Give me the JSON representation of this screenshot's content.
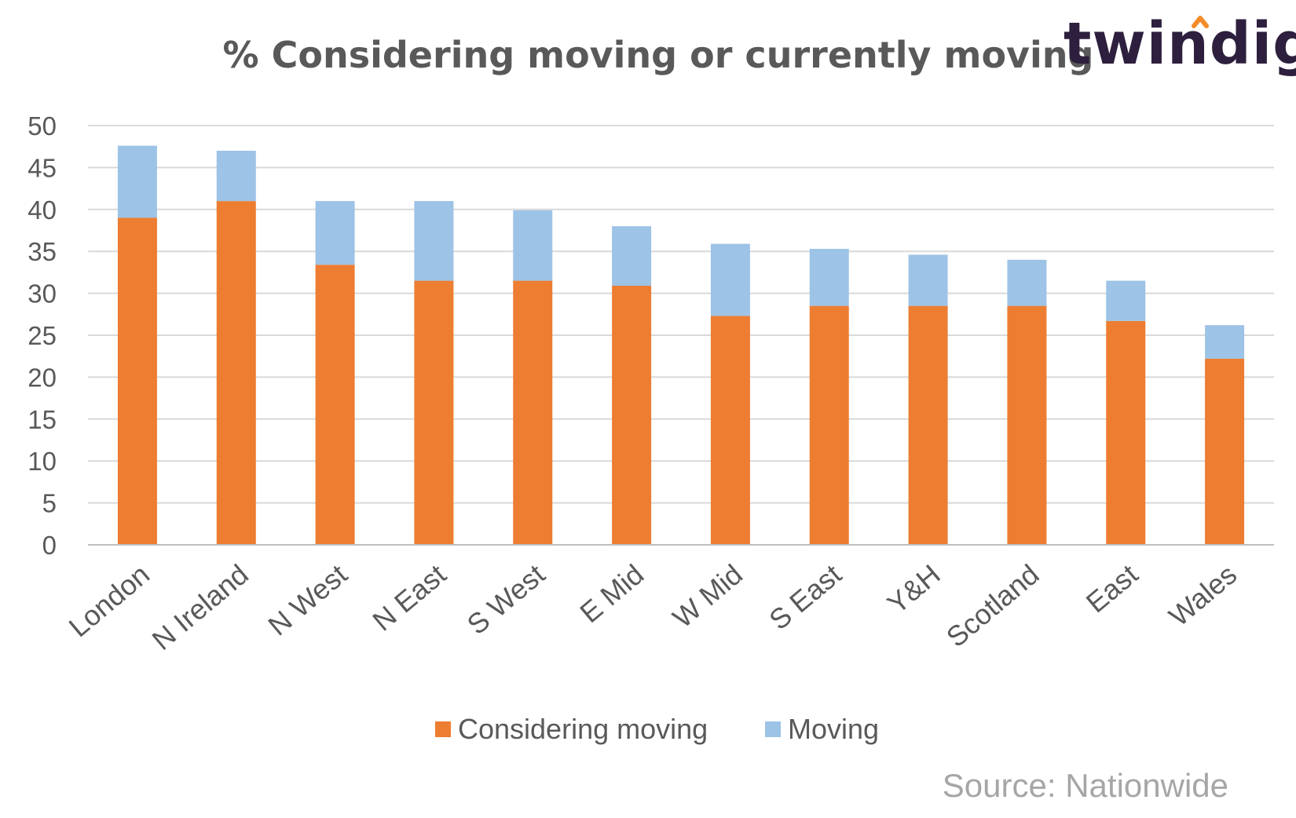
{
  "brand": {
    "logo_text": "twindig",
    "accent_color": "#f28c28",
    "text_color": "#2d1f3d"
  },
  "source_note": "Source: Nationwide",
  "chart_data": {
    "type": "bar",
    "stacked": true,
    "title": "% Considering moving or currently moving",
    "xlabel": "",
    "ylabel": "",
    "ylim": [
      0,
      50
    ],
    "yticks": [
      0,
      5,
      10,
      15,
      20,
      25,
      30,
      35,
      40,
      45,
      50
    ],
    "grid": true,
    "legend_position": "bottom",
    "categories": [
      "London",
      "N Ireland",
      "N West",
      "N East",
      "S West",
      "E Mid",
      "W Mid",
      "S East",
      "Y&H",
      "Scotland",
      "East",
      "Wales"
    ],
    "series": [
      {
        "name": "Considering moving",
        "color": "#ed7d31",
        "values": [
          39,
          41,
          33.4,
          31.5,
          31.5,
          30.9,
          27.3,
          28.5,
          28.5,
          28.5,
          26.7,
          22.2
        ]
      },
      {
        "name": "Moving",
        "color": "#9dc3e6",
        "values": [
          8.6,
          6,
          7.6,
          9.5,
          8.4,
          7.1,
          8.6,
          6.8,
          6.1,
          5.5,
          4.8,
          4
        ]
      }
    ]
  }
}
